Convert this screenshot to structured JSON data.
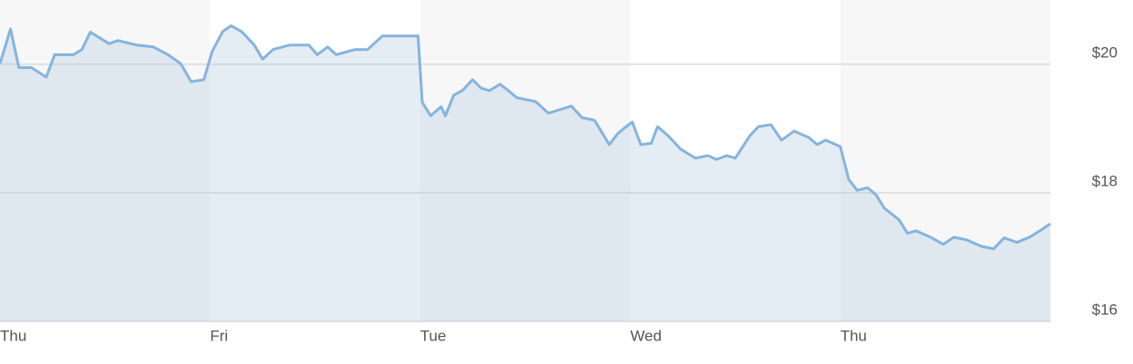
{
  "chart_data": {
    "type": "area",
    "x": [
      0,
      0.05,
      0.09,
      0.15,
      0.22,
      0.26,
      0.35,
      0.39,
      0.43,
      0.52,
      0.56,
      0.65,
      0.73,
      0.8,
      0.86,
      0.91,
      0.97,
      1.01,
      1.06,
      1.1,
      1.15,
      1.21,
      1.25,
      1.3,
      1.38,
      1.47,
      1.51,
      1.56,
      1.6,
      1.69,
      1.75,
      1.82,
      1.9,
      1.99,
      2.01,
      2.05,
      2.1,
      2.12,
      2.16,
      2.2,
      2.25,
      2.29,
      2.33,
      2.38,
      2.42,
      2.46,
      2.55,
      2.61,
      2.68,
      2.72,
      2.77,
      2.83,
      2.9,
      2.94,
      2.98,
      3.01,
      3.05,
      3.1,
      3.13,
      3.18,
      3.24,
      3.31,
      3.37,
      3.41,
      3.46,
      3.5,
      3.57,
      3.61,
      3.67,
      3.72,
      3.78,
      3.85,
      3.89,
      3.93,
      4.0,
      4.04,
      4.08,
      4.13,
      4.17,
      4.21,
      4.28,
      4.32,
      4.36,
      4.43,
      4.49,
      4.54,
      4.6,
      4.67,
      4.73,
      4.78,
      4.84,
      4.9,
      4.95,
      5.0
    ],
    "series": [
      {
        "color": "#85b4de",
        "values": [
          20.01,
          20.55,
          19.95,
          19.95,
          19.8,
          20.15,
          20.15,
          20.23,
          20.5,
          20.32,
          20.37,
          20.3,
          20.27,
          20.15,
          20.01,
          19.73,
          19.76,
          20.2,
          20.51,
          20.6,
          20.51,
          20.3,
          20.08,
          20.23,
          20.3,
          20.3,
          20.15,
          20.27,
          20.15,
          20.23,
          20.23,
          20.44,
          20.44,
          20.44,
          19.41,
          19.2,
          19.34,
          19.2,
          19.52,
          19.59,
          19.76,
          19.63,
          19.59,
          19.69,
          19.59,
          19.48,
          19.42,
          19.24,
          19.31,
          19.35,
          19.17,
          19.13,
          18.75,
          18.92,
          19.03,
          19.1,
          18.75,
          18.77,
          19.03,
          18.89,
          18.68,
          18.54,
          18.58,
          18.52,
          18.58,
          18.54,
          18.89,
          19.03,
          19.06,
          18.82,
          18.96,
          18.86,
          18.75,
          18.82,
          18.72,
          18.21,
          18.04,
          18.08,
          17.97,
          17.76,
          17.58,
          17.37,
          17.41,
          17.31,
          17.2,
          17.31,
          17.27,
          17.17,
          17.13,
          17.3,
          17.23,
          17.31,
          17.41,
          17.52
        ]
      }
    ],
    "xlim": [
      0,
      5
    ],
    "xticks": [
      {
        "value": 0,
        "label": "Thu"
      },
      {
        "value": 1,
        "label": "Fri"
      },
      {
        "value": 2,
        "label": "Tue"
      },
      {
        "value": 3,
        "label": "Wed"
      },
      {
        "value": 4,
        "label": "Thu"
      }
    ],
    "ylim": [
      16,
      21
    ],
    "yticks": [
      {
        "value": 16,
        "label": "$16"
      },
      {
        "value": 18,
        "label": "$18"
      },
      {
        "value": 20,
        "label": "$20"
      }
    ],
    "grid": true
  }
}
